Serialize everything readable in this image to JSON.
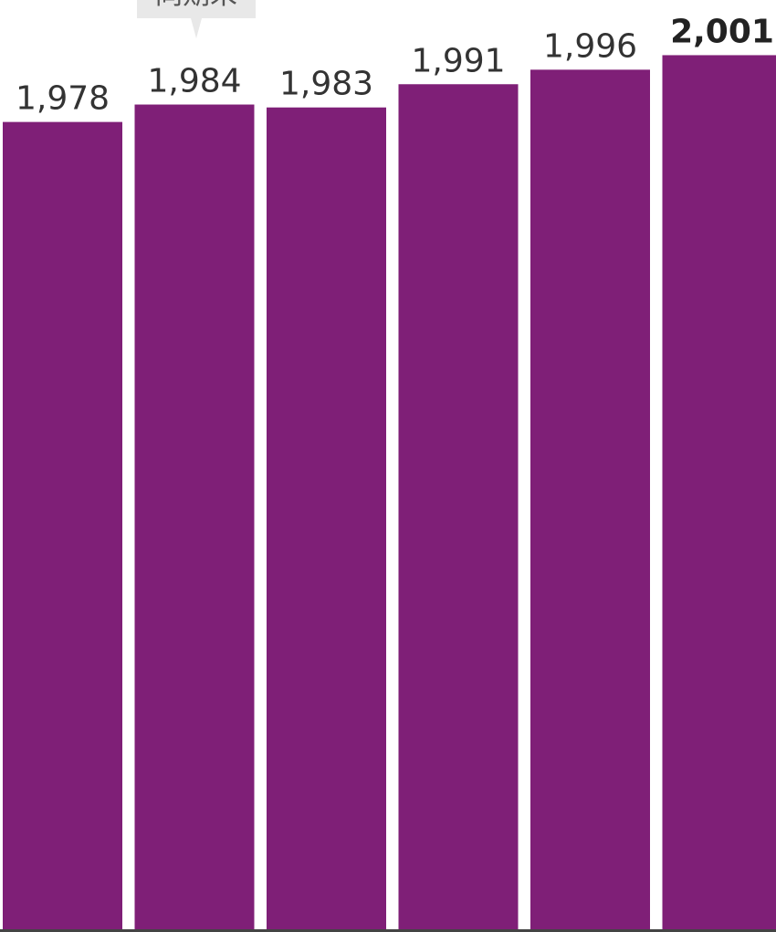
{
  "chart_data": {
    "type": "bar",
    "annotation": "同期末",
    "values": [
      1978,
      1984,
      1983,
      1991,
      1996,
      2001
    ],
    "value_labels": [
      "1,978",
      "1,984",
      "1,983",
      "1,991",
      "1,996",
      "2,001"
    ],
    "color": "#7f1f77",
    "ylim": [
      1700,
      2020
    ]
  }
}
